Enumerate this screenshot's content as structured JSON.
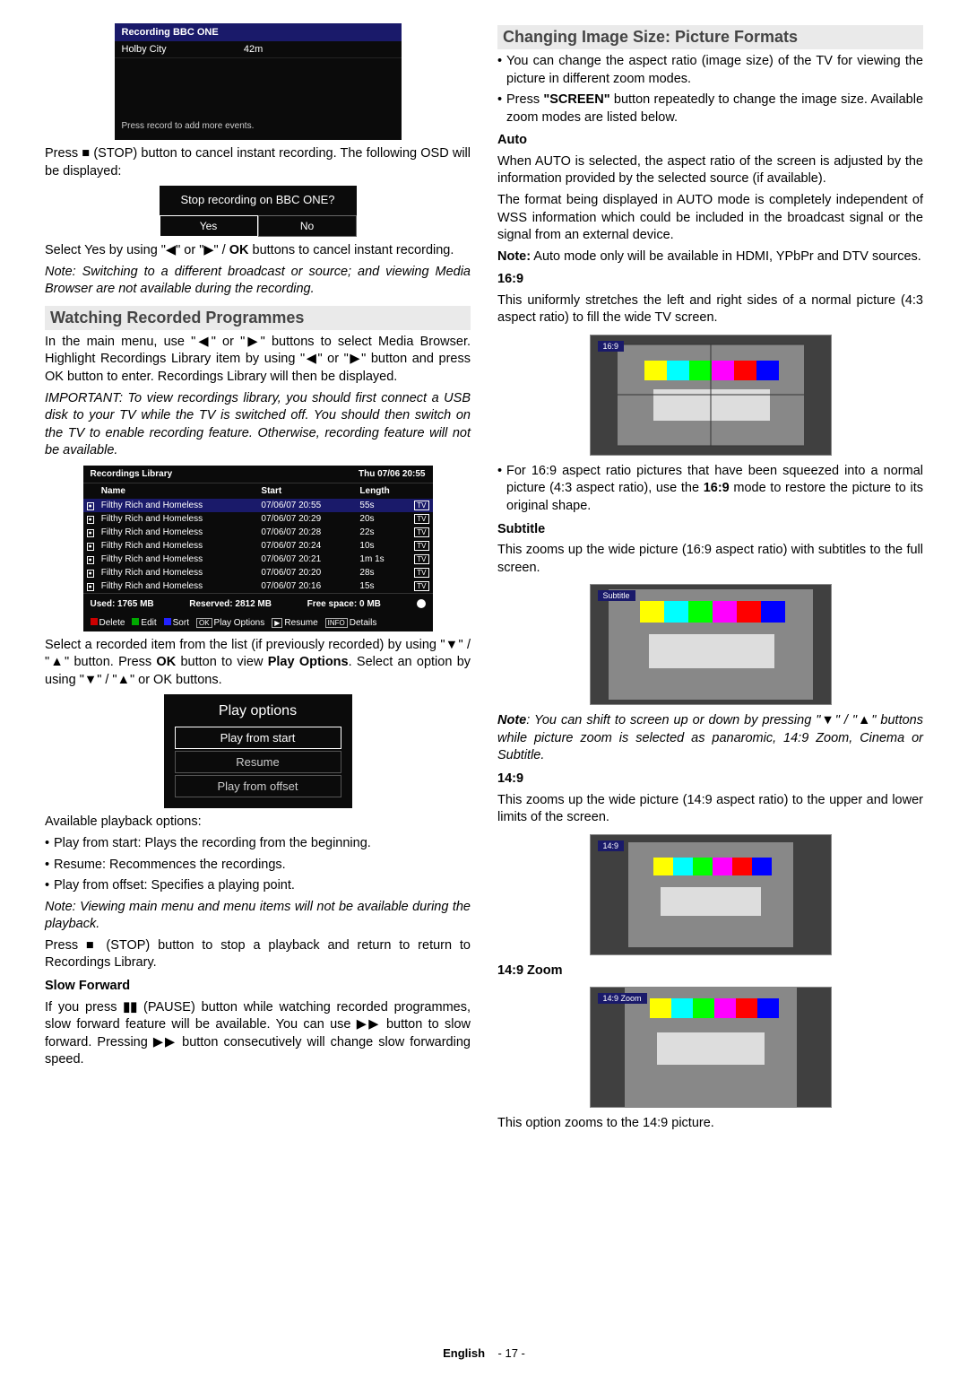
{
  "rec_box": {
    "title": "Recording BBC ONE",
    "program": "Holby City",
    "duration": "42m",
    "hint": "Press record to add more events."
  },
  "left": {
    "p1a": "Press ",
    "p1b": " (STOP) button to cancel instant recording. The following OSD will be displayed:",
    "stop_q": "Stop recording on BBC ONE?",
    "yes": "Yes",
    "no": "No",
    "p2a": "Select Yes by using \"",
    "p2b": "\" or \"",
    "p2c": "\" / ",
    "ok": "OK",
    "p2d": " buttons to cancel instant recording.",
    "note1": "Note: Switching to a different broadcast or source; and viewing Media Browser are not available during the recording.",
    "sec1": "Watching Recorded Programmes",
    "p3a": "In the main menu, use \"",
    "p3b": "\" or \"",
    "p3c": "\" buttons to select Media Browser. Highlight Recordings Library item by using \"",
    "p3d": "\" or \"",
    "p3e": "\" button and press OK button to enter. Recordings Library will then be displayed.",
    "imp": "IMPORTANT: To view recordings library, you should first connect a USB disk to your TV while the TV is switched off. You should then switch on the TV to enable recording feature. Otherwise, recording feature will not be available.",
    "lib": {
      "title": "Recordings Library",
      "date": "Thu 07/06 20:55",
      "cols": [
        "Name",
        "Start",
        "Length"
      ],
      "rows": [
        {
          "n": "Filthy Rich and Homeless",
          "s": "07/06/07 20:55",
          "l": "55s"
        },
        {
          "n": "Filthy Rich and Homeless",
          "s": "07/06/07 20:29",
          "l": "20s"
        },
        {
          "n": "Filthy Rich and Homeless",
          "s": "07/06/07 20:28",
          "l": "22s"
        },
        {
          "n": "Filthy Rich and Homeless",
          "s": "07/06/07 20:24",
          "l": "10s"
        },
        {
          "n": "Filthy Rich and Homeless",
          "s": "07/06/07 20:21",
          "l": "1m 1s"
        },
        {
          "n": "Filthy Rich and Homeless",
          "s": "07/06/07 20:20",
          "l": "28s"
        },
        {
          "n": "Filthy Rich and Homeless",
          "s": "07/06/07 20:16",
          "l": "15s"
        }
      ],
      "used": "Used: 1765 MB",
      "reserved": "Reserved: 2812 MB",
      "free": "Free space: 0 MB",
      "f": {
        "del": "Delete",
        "edit": "Edit",
        "sort": "Sort",
        "play": "Play Options",
        "resume": "Resume",
        "details": "Details",
        "ok": "OK",
        "p": "▶",
        "info": "INFO"
      }
    },
    "p4a": "Select a recorded item from the list (if previously recorded) by using \"",
    "dn": "▼",
    "up": "▲",
    "p4b": "\" / \"",
    "p4c": "\"  button. Press ",
    "p4d": " button to view ",
    "popt": "Play Options",
    "p4e": ". Select an option by using \"",
    "p4f": "\" / \"",
    "p4g": "\" or OK buttons.",
    "po": {
      "t": "Play options",
      "a": "Play from start",
      "b": "Resume",
      "c": "Play from offset"
    },
    "avail": "Available playback options:",
    "b1": "Play from start: Plays the recording from the beginning.",
    "b2": "Resume: Recommences the recordings.",
    "b3": "Play from offset: Specifies a playing point.",
    "note2": "Note: Viewing main menu and menu items will not be available during the playback.",
    "p5a": "Press ",
    "p5b": " (STOP) button to stop a playback and return to return to Recordings Library.",
    "slow": "Slow Forward",
    "p6a": "If you press ",
    "p6b": " (PAUSE) button while watching recorded programmes, slow forward feature will be available. You can use ",
    "p6c": " button to slow forward. Pressing ",
    "p6d": " button consecutively will change slow forwarding speed."
  },
  "right": {
    "sec": "Changing Image Size: Picture Formats",
    "b1": "You can change the aspect ratio (image size) of the TV for viewing the picture in different zoom modes.",
    "b2a": "Press ",
    "screen": "\"SCREEN\"",
    "b2b": " button repeatedly to change the image size. Available zoom modes are listed below.",
    "auto": "Auto",
    "auto_p1": "When AUTO is selected, the aspect ratio of the screen is adjusted by the information provided by the selected source (if available).",
    "auto_p2": "The format being displayed in AUTO mode is completely independent of WSS information which could be included in the broadcast signal or the signal from an external device.",
    "auto_note_a": "Note:",
    "auto_note_b": " Auto mode only will be available in HDMI, YPbPr and DTV sources.",
    "r169": "16:9",
    "r169_p": "This uniformly stretches the left and right sides of a normal picture (4:3 aspect ratio) to fill the wide TV screen.",
    "r169_b_a": "For 16:9 aspect ratio pictures that have been squeezed into a normal picture (4:3 aspect ratio), use the ",
    "r169_b_m": "16:9",
    "r169_b_b": " mode to restore the picture to its original shape.",
    "sub": "Subtitle",
    "sub_p": "This zooms up the wide picture (16:9 aspect ratio) with subtitles to the full screen.",
    "sub_note_a": "Note",
    "sub_note_b": ": You can shift to screen up or down by pressing \"",
    "sub_note_c": "\" / \"",
    "sub_note_d": "\" buttons while picture zoom is selected as panaromic, 14:9 Zoom, Cinema or Subtitle.",
    "r149": "14:9",
    "r149_p": "This zooms up the wide picture (14:9 aspect ratio) to the upper and lower limits of the screen.",
    "r149z": "14:9 Zoom",
    "r149z_p": "This option zooms to the 14:9 picture.",
    "labels": {
      "l169": "16:9",
      "lsub": "Subtitle",
      "l149": "14:9",
      "l149z": "14:9 Zoom"
    }
  },
  "footer": {
    "lang": "English",
    "pg": "- 17 -"
  },
  "icons": {
    "stop": "■",
    "left": "◀",
    "right": "▶",
    "pause": "▮▮",
    "ff": "▶▶",
    "rec": "●"
  }
}
